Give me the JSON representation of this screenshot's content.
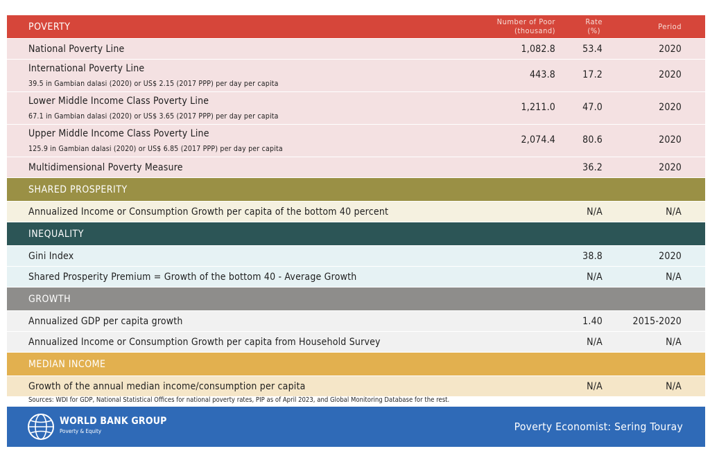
{
  "colors": {
    "poverty_header": "#d6463a",
    "poverty_row": "#f4e1e2",
    "shared_header": "#9a9045",
    "shared_row": "#f5f1e0",
    "inequality_header": "#2c5556",
    "inequality_row": "#e6f2f4",
    "growth_header": "#8e8d8b",
    "growth_row": "#f1f1f1",
    "median_header": "#e2b04f",
    "median_row": "#f5e6c8",
    "footer": "#2f6ab7"
  },
  "poverty": {
    "title": "POVERTY",
    "col_number": "Number of Poor",
    "col_number_unit": "(thousand)",
    "col_rate": "Rate",
    "col_rate_unit": "(%)",
    "col_period": "Period",
    "rows": [
      {
        "label": "National Poverty Line",
        "note": "",
        "number": "1,082.8",
        "rate": "53.4",
        "period": "2020"
      },
      {
        "label": "International Poverty Line",
        "note": "39.5 in Gambian dalasi (2020) or US$ 2.15 (2017 PPP) per day per capita",
        "number": "443.8",
        "rate": "17.2",
        "period": "2020"
      },
      {
        "label": "Lower Middle Income Class Poverty Line",
        "note": "67.1 in Gambian dalasi (2020) or US$ 3.65 (2017 PPP) per day per capita",
        "number": "1,211.0",
        "rate": "47.0",
        "period": "2020"
      },
      {
        "label": "Upper Middle Income Class Poverty Line",
        "note": "125.9 in Gambian dalasi (2020) or US$ 6.85 (2017 PPP) per day per capita",
        "number": "2,074.4",
        "rate": "80.6",
        "period": "2020"
      },
      {
        "label": "Multidimensional Poverty Measure",
        "note": "",
        "number": "",
        "rate": "36.2",
        "period": "2020"
      }
    ]
  },
  "shared_prosperity": {
    "title": "SHARED PROSPERITY",
    "rows": [
      {
        "label": "Annualized Income or Consumption Growth per capita of the bottom 40 percent",
        "rate": "N/A",
        "period": "N/A"
      }
    ]
  },
  "inequality": {
    "title": "INEQUALITY",
    "rows": [
      {
        "label": "Gini Index",
        "rate": "38.8",
        "period": "2020"
      },
      {
        "label": "Shared Prosperity Premium = Growth of the bottom 40 - Average Growth",
        "rate": "N/A",
        "period": "N/A"
      }
    ]
  },
  "growth": {
    "title": "GROWTH",
    "rows": [
      {
        "label": "Annualized GDP per capita growth",
        "rate": "1.40",
        "period": "2015-2020"
      },
      {
        "label": "Annualized Income or Consumption Growth per capita from Household Survey",
        "rate": "N/A",
        "period": "N/A"
      }
    ]
  },
  "median_income": {
    "title": "MEDIAN INCOME",
    "rows": [
      {
        "label": "Growth of the annual median income/consumption per capita",
        "rate": "N/A",
        "period": "N/A"
      }
    ]
  },
  "sources": "Sources: WDI for GDP, National Statistical Offices for national poverty rates, PIP as of April 2023, and Global Monitoring Database for the rest.",
  "footer": {
    "logo_icon": "globe-icon",
    "brand": "WORLD BANK GROUP",
    "brand_sub": "Poverty & Equity",
    "economist": "Poverty Economist: Sering Touray"
  }
}
